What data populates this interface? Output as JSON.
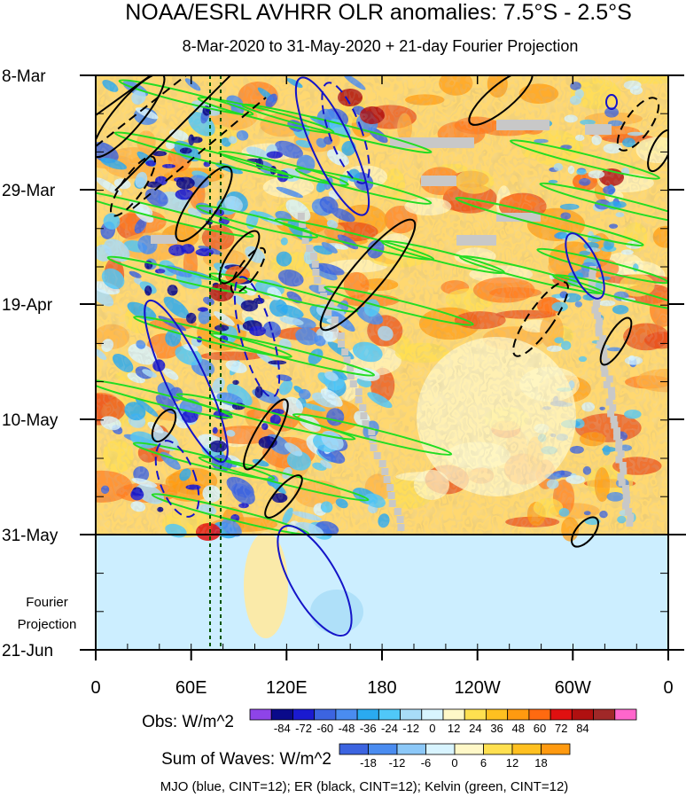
{
  "chart_data": {
    "type": "heatmap",
    "title": "NOAA/ESRL AVHRR OLR anomalies: 7.5°S - 2.5°S",
    "subtitle": "8-Mar-2020 to 31-May-2020 + 21-day Fourier Projection",
    "y_ticks": [
      "8-Mar",
      "29-Mar",
      "19-Apr",
      "10-May",
      "31-May",
      "21-Jun"
    ],
    "x_ticks": [
      "0",
      "60E",
      "120E",
      "180",
      "120W",
      "60W",
      "0"
    ],
    "projection_label_line1": "Fourier",
    "projection_label_line2": "Projection",
    "obs_colorbar": {
      "label": "Obs: W/m^2",
      "levels": [
        "-84",
        "-72",
        "-60",
        "-48",
        "-36",
        "-24",
        "-12",
        "0",
        "12",
        "24",
        "36",
        "48",
        "60",
        "72",
        "84"
      ],
      "colors": [
        "#8e44e8",
        "#0a0a8a",
        "#1a1ad0",
        "#3c64e0",
        "#4a8cf0",
        "#2aaaf0",
        "#50c8f8",
        "#a8dcf8",
        "#d8f4ff",
        "#fff8c8",
        "#ffe050",
        "#ffc020",
        "#ff9a10",
        "#ff6a10",
        "#e01010",
        "#b01010",
        "#a02828",
        "#ff66cc"
      ]
    },
    "waves_colorbar": {
      "label": "Sum of Waves: W/m^2",
      "levels": [
        "-18",
        "-12",
        "-6",
        "0",
        "6",
        "12",
        "18"
      ],
      "colors": [
        "#3c64e0",
        "#4a8cf0",
        "#8cc8f8",
        "#d8f4ff",
        "#fff8c8",
        "#ffe050",
        "#ffc020",
        "#ff9a10"
      ]
    },
    "footer": "MJO (blue, CINT=12); ER (black, CINT=12); Kelvin (green, CINT=12)",
    "series": [
      {
        "name": "MJO",
        "color": "#1414c8"
      },
      {
        "name": "ER",
        "color": "#000000"
      },
      {
        "name": "Kelvin",
        "color": "#22dd22"
      }
    ]
  }
}
